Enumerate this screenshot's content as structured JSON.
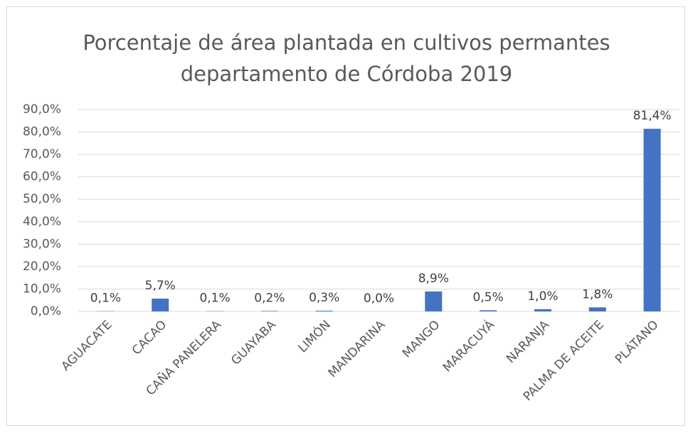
{
  "chart_data": {
    "type": "bar",
    "title": "Porcentaje de área plantada en cultivos permantes departamento de Córdoba 2019",
    "categories": [
      "AGUACATE",
      "CACAO",
      "CAÑA PANELERA",
      "GUAYABA",
      "LIMÓN",
      "MANDARINA",
      "MANGO",
      "MARACUYÁ",
      "NARANJA",
      "PALMA DE ACEITE",
      "PLÁTANO"
    ],
    "values": [
      0.1,
      5.7,
      0.1,
      0.2,
      0.3,
      0.0,
      8.9,
      0.5,
      1.0,
      1.8,
      81.4
    ],
    "value_labels": [
      "0,1%",
      "5,7%",
      "0,1%",
      "0,2%",
      "0,3%",
      "0,0%",
      "8,9%",
      "0,5%",
      "1,0%",
      "1,8%",
      "81,4%"
    ],
    "color": "#4472c4",
    "ylim": [
      0,
      90
    ],
    "yticks": [
      {
        "value": 0,
        "label": "0,0%"
      },
      {
        "value": 10,
        "label": "10,0%"
      },
      {
        "value": 20,
        "label": "20,0%"
      },
      {
        "value": 30,
        "label": "30,0%"
      },
      {
        "value": 40,
        "label": "40,0%"
      },
      {
        "value": 50,
        "label": "50,0%"
      },
      {
        "value": 60,
        "label": "60,0%"
      },
      {
        "value": 70,
        "label": "70,0%"
      },
      {
        "value": 80,
        "label": "80,0%"
      },
      {
        "value": 90,
        "label": "90,0%"
      }
    ],
    "grid": true
  }
}
